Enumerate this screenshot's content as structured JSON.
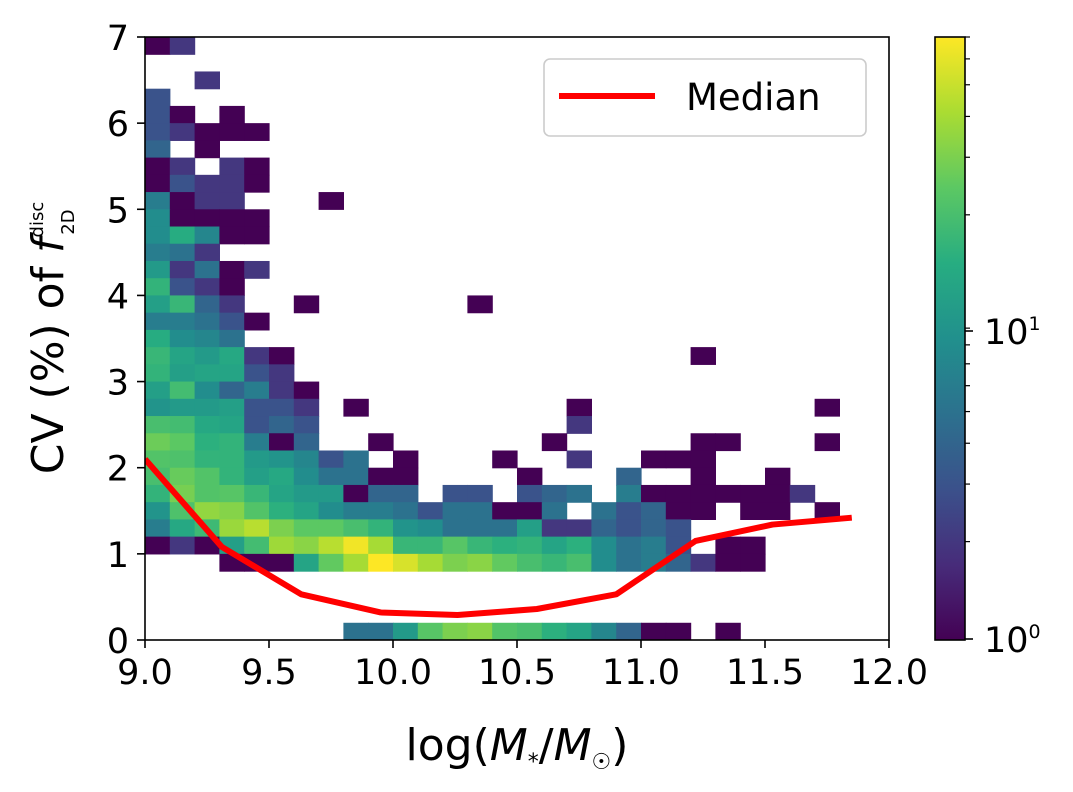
{
  "chart_data": {
    "type": "heatmap",
    "title": "",
    "xlabel_parts": {
      "prefix": "log(",
      "m1": "M",
      "sub1": "*",
      "slash": "/",
      "m2": "M",
      "sub2": "☉",
      "suffix": ")"
    },
    "ylabel_parts": {
      "prefix": "CV (%) of ",
      "f": "f",
      "sup": "disc",
      "sub": "2D"
    },
    "xlim": [
      9.0,
      12.0
    ],
    "ylim": [
      0,
      7
    ],
    "xticks": [
      "9.0",
      "9.5",
      "10.0",
      "10.5",
      "11.0",
      "11.5",
      "12.0"
    ],
    "yticks": [
      "0",
      "1",
      "2",
      "3",
      "4",
      "5",
      "6",
      "7"
    ],
    "bin_width_x": 0.1,
    "bin_width_y": 0.2,
    "colormap": "viridis",
    "color_scale": "log",
    "color_range": [
      1,
      70
    ],
    "colorbar_ticks": [
      {
        "value": 1,
        "base": "10",
        "exp": "0"
      },
      {
        "value": 10,
        "base": "10",
        "exp": "1"
      }
    ],
    "bins": [
      [
        9.0,
        6.8,
        1
      ],
      [
        9.1,
        6.8,
        2
      ],
      [
        9.2,
        6.4,
        2
      ],
      [
        9.0,
        6.2,
        3
      ],
      [
        9.0,
        6.0,
        3
      ],
      [
        9.1,
        6.0,
        1
      ],
      [
        9.3,
        6.0,
        1
      ],
      [
        9.0,
        5.8,
        3
      ],
      [
        9.1,
        5.8,
        2
      ],
      [
        9.2,
        5.8,
        1
      ],
      [
        9.3,
        5.8,
        1
      ],
      [
        9.4,
        5.8,
        1
      ],
      [
        9.0,
        5.6,
        4
      ],
      [
        9.2,
        5.6,
        1
      ],
      [
        9.0,
        5.4,
        1
      ],
      [
        9.1,
        5.4,
        2
      ],
      [
        9.3,
        5.4,
        2
      ],
      [
        9.4,
        5.4,
        1
      ],
      [
        9.0,
        5.2,
        1
      ],
      [
        9.1,
        5.2,
        3
      ],
      [
        9.2,
        5.2,
        2
      ],
      [
        9.3,
        5.2,
        2
      ],
      [
        9.4,
        5.2,
        1
      ],
      [
        9.0,
        5.0,
        6
      ],
      [
        9.1,
        5.0,
        1
      ],
      [
        9.2,
        5.0,
        2
      ],
      [
        9.3,
        5.0,
        2
      ],
      [
        9.7,
        5.0,
        1
      ],
      [
        9.0,
        4.8,
        8
      ],
      [
        9.1,
        4.8,
        1
      ],
      [
        9.2,
        4.8,
        1
      ],
      [
        9.3,
        4.8,
        1
      ],
      [
        9.4,
        4.8,
        1
      ],
      [
        9.0,
        4.6,
        8
      ],
      [
        9.1,
        4.6,
        14
      ],
      [
        9.2,
        4.6,
        7
      ],
      [
        9.3,
        4.6,
        1
      ],
      [
        9.4,
        4.6,
        1
      ],
      [
        9.0,
        4.4,
        6
      ],
      [
        9.1,
        4.4,
        5
      ],
      [
        9.2,
        4.4,
        2
      ],
      [
        9.0,
        4.2,
        10
      ],
      [
        9.1,
        4.2,
        2
      ],
      [
        9.2,
        4.2,
        5
      ],
      [
        9.3,
        4.2,
        1
      ],
      [
        9.4,
        4.2,
        2
      ],
      [
        9.0,
        4.0,
        16
      ],
      [
        9.1,
        4.0,
        3
      ],
      [
        9.2,
        4.0,
        2
      ],
      [
        9.3,
        4.0,
        1
      ],
      [
        9.0,
        3.8,
        11
      ],
      [
        9.1,
        3.8,
        17
      ],
      [
        9.2,
        3.8,
        4
      ],
      [
        9.3,
        3.8,
        2
      ],
      [
        9.6,
        3.8,
        1
      ],
      [
        10.3,
        3.8,
        1
      ],
      [
        9.0,
        3.6,
        6
      ],
      [
        9.1,
        3.6,
        6
      ],
      [
        9.2,
        3.6,
        5
      ],
      [
        9.3,
        3.6,
        3
      ],
      [
        9.4,
        3.6,
        1
      ],
      [
        9.0,
        3.4,
        14
      ],
      [
        9.1,
        3.4,
        8
      ],
      [
        9.2,
        3.4,
        7
      ],
      [
        9.3,
        3.4,
        5
      ],
      [
        9.0,
        3.2,
        17
      ],
      [
        9.1,
        3.2,
        12
      ],
      [
        9.2,
        3.2,
        10
      ],
      [
        9.3,
        3.2,
        13
      ],
      [
        9.4,
        3.2,
        2
      ],
      [
        9.5,
        3.2,
        1
      ],
      [
        11.2,
        3.2,
        1
      ],
      [
        9.0,
        3.0,
        16
      ],
      [
        9.1,
        3.0,
        11
      ],
      [
        9.2,
        3.0,
        12
      ],
      [
        9.3,
        3.0,
        12
      ],
      [
        9.4,
        3.0,
        3
      ],
      [
        9.5,
        3.0,
        2
      ],
      [
        9.0,
        2.8,
        11
      ],
      [
        9.1,
        2.8,
        19
      ],
      [
        9.2,
        2.8,
        8
      ],
      [
        9.3,
        2.8,
        4
      ],
      [
        9.4,
        2.8,
        6
      ],
      [
        9.5,
        2.8,
        2
      ],
      [
        9.6,
        2.8,
        1
      ],
      [
        9.0,
        2.6,
        9
      ],
      [
        9.1,
        2.6,
        10
      ],
      [
        9.2,
        2.6,
        10
      ],
      [
        9.3,
        2.6,
        11
      ],
      [
        9.4,
        2.6,
        3
      ],
      [
        9.5,
        2.6,
        3
      ],
      [
        9.6,
        2.6,
        2
      ],
      [
        9.8,
        2.6,
        1
      ],
      [
        10.7,
        2.6,
        1
      ],
      [
        11.7,
        2.6,
        1
      ],
      [
        9.0,
        2.4,
        20
      ],
      [
        9.1,
        2.4,
        19
      ],
      [
        9.2,
        2.4,
        13
      ],
      [
        9.3,
        2.4,
        12
      ],
      [
        9.4,
        2.4,
        3
      ],
      [
        9.5,
        2.4,
        4
      ],
      [
        9.6,
        2.4,
        3
      ],
      [
        10.7,
        2.4,
        2
      ],
      [
        9.0,
        2.2,
        27
      ],
      [
        9.1,
        2.2,
        24
      ],
      [
        9.2,
        2.2,
        15
      ],
      [
        9.3,
        2.2,
        16
      ],
      [
        9.4,
        2.2,
        6
      ],
      [
        9.5,
        2.2,
        1
      ],
      [
        9.6,
        2.2,
        4
      ],
      [
        9.9,
        2.2,
        1
      ],
      [
        10.6,
        2.2,
        1
      ],
      [
        11.2,
        2.2,
        1
      ],
      [
        11.3,
        2.2,
        1
      ],
      [
        11.7,
        2.2,
        1
      ],
      [
        9.0,
        2.0,
        22
      ],
      [
        9.1,
        2.0,
        21
      ],
      [
        9.2,
        2.0,
        16
      ],
      [
        9.3,
        2.0,
        16
      ],
      [
        9.4,
        2.0,
        10
      ],
      [
        9.5,
        2.0,
        9
      ],
      [
        9.6,
        2.0,
        7
      ],
      [
        9.7,
        2.0,
        3
      ],
      [
        9.8,
        2.0,
        5
      ],
      [
        10.0,
        2.0,
        1
      ],
      [
        10.4,
        2.0,
        1
      ],
      [
        10.7,
        2.0,
        2
      ],
      [
        11.0,
        2.0,
        1
      ],
      [
        11.1,
        2.0,
        1
      ],
      [
        11.2,
        2.0,
        1
      ],
      [
        9.0,
        1.8,
        20
      ],
      [
        9.1,
        1.8,
        26
      ],
      [
        9.2,
        1.8,
        22
      ],
      [
        9.3,
        1.8,
        16
      ],
      [
        9.4,
        1.8,
        11
      ],
      [
        9.5,
        1.8,
        13
      ],
      [
        9.6,
        1.8,
        8
      ],
      [
        9.7,
        1.8,
        5
      ],
      [
        9.8,
        1.8,
        5
      ],
      [
        9.9,
        1.8,
        1
      ],
      [
        10.0,
        1.8,
        1
      ],
      [
        10.5,
        1.8,
        1
      ],
      [
        10.9,
        1.8,
        4
      ],
      [
        11.2,
        1.8,
        1
      ],
      [
        11.5,
        1.8,
        1
      ],
      [
        9.0,
        1.6,
        16
      ],
      [
        9.1,
        1.6,
        29
      ],
      [
        9.2,
        1.6,
        22
      ],
      [
        9.3,
        1.6,
        23
      ],
      [
        9.4,
        1.6,
        17
      ],
      [
        9.5,
        1.6,
        12
      ],
      [
        9.6,
        1.6,
        10
      ],
      [
        9.7,
        1.6,
        10
      ],
      [
        9.8,
        1.6,
        1
      ],
      [
        9.9,
        1.6,
        4
      ],
      [
        10.0,
        1.6,
        4
      ],
      [
        10.2,
        1.6,
        3
      ],
      [
        10.3,
        1.6,
        3
      ],
      [
        10.5,
        1.6,
        3
      ],
      [
        10.6,
        1.6,
        4
      ],
      [
        10.7,
        1.6,
        5
      ],
      [
        10.9,
        1.6,
        6
      ],
      [
        11.0,
        1.6,
        1
      ],
      [
        11.1,
        1.6,
        1
      ],
      [
        11.2,
        1.6,
        1
      ],
      [
        11.3,
        1.6,
        1
      ],
      [
        11.4,
        1.6,
        1
      ],
      [
        11.5,
        1.6,
        1
      ],
      [
        11.6,
        1.6,
        2
      ],
      [
        9.0,
        1.4,
        9
      ],
      [
        9.1,
        1.4,
        21
      ],
      [
        9.2,
        1.4,
        35
      ],
      [
        9.3,
        1.4,
        32
      ],
      [
        9.4,
        1.4,
        22
      ],
      [
        9.5,
        1.4,
        15
      ],
      [
        9.6,
        1.4,
        12
      ],
      [
        9.7,
        1.4,
        8
      ],
      [
        9.8,
        1.4,
        6
      ],
      [
        9.9,
        1.4,
        6
      ],
      [
        10.0,
        1.4,
        5
      ],
      [
        10.1,
        1.4,
        3
      ],
      [
        10.2,
        1.4,
        5
      ],
      [
        10.3,
        1.4,
        5
      ],
      [
        10.4,
        1.4,
        1
      ],
      [
        10.5,
        1.4,
        1
      ],
      [
        10.6,
        1.4,
        5
      ],
      [
        10.8,
        1.4,
        5
      ],
      [
        10.9,
        1.4,
        3
      ],
      [
        11.0,
        1.4,
        4
      ],
      [
        11.1,
        1.4,
        1
      ],
      [
        11.2,
        1.4,
        1
      ],
      [
        11.4,
        1.4,
        1
      ],
      [
        11.5,
        1.4,
        1
      ],
      [
        11.7,
        1.4,
        1
      ],
      [
        9.0,
        1.2,
        6
      ],
      [
        9.1,
        1.2,
        13
      ],
      [
        9.2,
        1.2,
        18
      ],
      [
        9.3,
        1.2,
        37
      ],
      [
        9.4,
        1.2,
        45
      ],
      [
        9.5,
        1.2,
        30
      ],
      [
        9.6,
        1.2,
        24
      ],
      [
        9.7,
        1.2,
        24
      ],
      [
        9.8,
        1.2,
        20
      ],
      [
        9.9,
        1.2,
        16
      ],
      [
        10.0,
        1.2,
        9
      ],
      [
        10.1,
        1.2,
        8
      ],
      [
        10.2,
        1.2,
        5
      ],
      [
        10.3,
        1.2,
        5
      ],
      [
        10.4,
        1.2,
        5
      ],
      [
        10.5,
        1.2,
        11
      ],
      [
        10.6,
        1.2,
        2
      ],
      [
        10.7,
        1.2,
        2
      ],
      [
        10.8,
        1.2,
        4
      ],
      [
        10.9,
        1.2,
        3
      ],
      [
        11.0,
        1.2,
        4
      ],
      [
        11.1,
        1.2,
        3
      ],
      [
        9.0,
        1.0,
        1
      ],
      [
        9.1,
        1.0,
        2
      ],
      [
        9.2,
        1.0,
        1
      ],
      [
        9.3,
        1.0,
        11
      ],
      [
        9.4,
        1.0,
        19
      ],
      [
        9.5,
        1.0,
        38
      ],
      [
        9.6,
        1.0,
        33
      ],
      [
        9.7,
        1.0,
        45
      ],
      [
        9.8,
        1.0,
        65
      ],
      [
        9.9,
        1.0,
        40
      ],
      [
        10.0,
        1.0,
        17
      ],
      [
        10.1,
        1.0,
        17
      ],
      [
        10.2,
        1.0,
        23
      ],
      [
        10.3,
        1.0,
        17
      ],
      [
        10.4,
        1.0,
        15
      ],
      [
        10.5,
        1.0,
        16
      ],
      [
        10.6,
        1.0,
        12
      ],
      [
        10.7,
        1.0,
        15
      ],
      [
        10.8,
        1.0,
        8
      ],
      [
        10.9,
        1.0,
        5
      ],
      [
        11.0,
        1.0,
        6
      ],
      [
        11.1,
        1.0,
        3
      ],
      [
        11.3,
        1.0,
        1
      ],
      [
        11.4,
        1.0,
        1
      ],
      [
        9.3,
        0.8,
        1
      ],
      [
        9.4,
        0.8,
        1
      ],
      [
        9.5,
        0.8,
        1
      ],
      [
        9.6,
        0.8,
        12
      ],
      [
        9.7,
        0.8,
        25
      ],
      [
        9.8,
        0.8,
        40
      ],
      [
        9.9,
        0.8,
        70
      ],
      [
        10.0,
        0.8,
        55
      ],
      [
        10.1,
        0.8,
        40
      ],
      [
        10.2,
        0.8,
        30
      ],
      [
        10.3,
        0.8,
        33
      ],
      [
        10.4,
        0.8,
        25
      ],
      [
        10.5,
        0.8,
        20
      ],
      [
        10.6,
        0.8,
        17
      ],
      [
        10.7,
        0.8,
        20
      ],
      [
        10.8,
        0.8,
        8
      ],
      [
        10.9,
        0.8,
        5
      ],
      [
        11.0,
        0.8,
        6
      ],
      [
        11.1,
        0.8,
        4
      ],
      [
        11.2,
        0.8,
        2
      ],
      [
        11.3,
        0.8,
        1
      ],
      [
        11.4,
        0.8,
        1
      ],
      [
        9.8,
        0.0,
        5
      ],
      [
        9.9,
        0.0,
        5
      ],
      [
        10.0,
        0.0,
        10
      ],
      [
        10.1,
        0.0,
        23
      ],
      [
        10.2,
        0.0,
        30
      ],
      [
        10.3,
        0.0,
        33
      ],
      [
        10.4,
        0.0,
        22
      ],
      [
        10.5,
        0.0,
        20
      ],
      [
        10.6,
        0.0,
        15
      ],
      [
        10.7,
        0.0,
        12
      ],
      [
        10.8,
        0.0,
        7
      ],
      [
        10.9,
        0.0,
        4
      ],
      [
        11.0,
        0.0,
        1
      ],
      [
        11.1,
        0.0,
        1
      ],
      [
        11.3,
        0.0,
        1
      ]
    ],
    "series": [
      {
        "name": "Median",
        "color": "#ff0000",
        "type": "line",
        "x": [
          9.0,
          9.31,
          9.63,
          9.95,
          10.26,
          10.58,
          10.9,
          11.22,
          11.53,
          11.85
        ],
        "y": [
          2.1,
          1.08,
          0.53,
          0.32,
          0.29,
          0.36,
          0.53,
          1.15,
          1.34,
          1.42
        ]
      }
    ],
    "legend": {
      "position": "top-right",
      "entries": [
        "Median"
      ]
    }
  }
}
